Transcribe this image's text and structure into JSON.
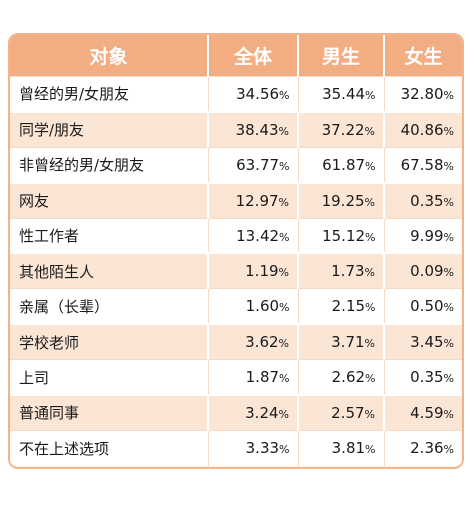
{
  "table": {
    "headers": [
      "对象",
      "全体",
      "男生",
      "女生"
    ],
    "rows": [
      {
        "label": "曾经的男/女朋友",
        "all": "34.56",
        "male": "35.44",
        "female": "32.80"
      },
      {
        "label": "同学/朋友",
        "all": "38.43",
        "male": "37.22",
        "female": "40.86"
      },
      {
        "label": "非曾经的男/女朋友",
        "all": "63.77",
        "male": "61.87",
        "female": "67.58"
      },
      {
        "label": "网友",
        "all": "12.97",
        "male": "19.25",
        "female": "0.35"
      },
      {
        "label": "性工作者",
        "all": "13.42",
        "male": "15.12",
        "female": "9.99"
      },
      {
        "label": "其他陌生人",
        "all": "1.19",
        "male": "1.73",
        "female": "0.09"
      },
      {
        "label": "亲属（长辈）",
        "all": "1.60",
        "male": "2.15",
        "female": "0.50"
      },
      {
        "label": "学校老师",
        "all": "3.62",
        "male": "3.71",
        "female": "3.45"
      },
      {
        "label": "上司",
        "all": "1.87",
        "male": "2.62",
        "female": "0.35"
      },
      {
        "label": "普通同事",
        "all": "3.24",
        "male": "2.57",
        "female": "4.59"
      },
      {
        "label": "不在上述选项",
        "all": "3.33",
        "male": "3.81",
        "female": "2.36"
      }
    ],
    "unit": "%",
    "colors": {
      "header_bg": "#f2ad82",
      "stripe_bg": "#fbe6d6",
      "border": "#f0b48a"
    }
  }
}
